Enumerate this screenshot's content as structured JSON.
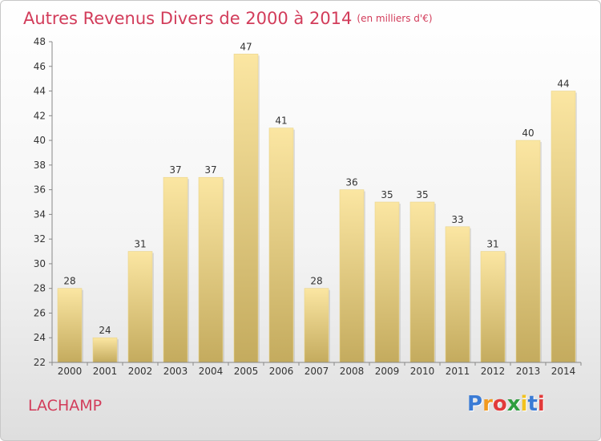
{
  "chart_data": {
    "type": "bar",
    "title": "Autres Revenus Divers de 2000 à 2014",
    "unit_label": "(en milliers d'€)",
    "categories": [
      "2000",
      "2001",
      "2002",
      "2003",
      "2004",
      "2005",
      "2006",
      "2007",
      "2008",
      "2009",
      "2010",
      "2011",
      "2012",
      "2013",
      "2014"
    ],
    "values": [
      28,
      24,
      31,
      37,
      37,
      47,
      41,
      28,
      36,
      35,
      35,
      33,
      31,
      40,
      44
    ],
    "ylim": [
      22,
      48
    ],
    "yticks": [
      22,
      24,
      26,
      28,
      30,
      32,
      34,
      36,
      38,
      40,
      42,
      44,
      46,
      48
    ],
    "grid": false,
    "bar_color_top": "#fbe6a2",
    "bar_color_bottom": "#c4ab5e"
  },
  "place": "LACHAMP",
  "logo": {
    "letters": [
      "P",
      "r",
      "o",
      "x",
      "i",
      "t",
      "i"
    ],
    "colors": [
      "#3a7bd5",
      "#f29a1f",
      "#e23a3a",
      "#2f9e3f",
      "#f2c21f",
      "#3a7bd5",
      "#e23a3a"
    ]
  }
}
